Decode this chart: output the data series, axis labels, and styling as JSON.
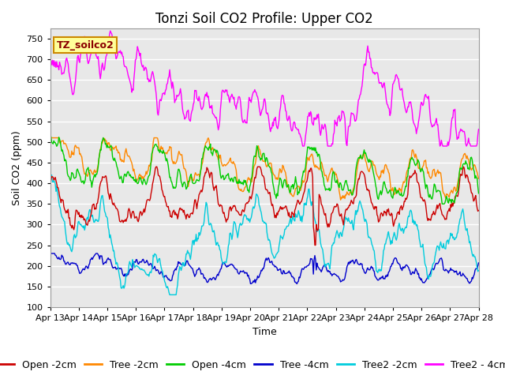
{
  "title": "Tonzi Soil CO2 Profile: Upper CO2",
  "xlabel": "Time",
  "ylabel": "Soil CO2 (ppm)",
  "ylim": [
    100,
    775
  ],
  "yticks": [
    100,
    150,
    200,
    250,
    300,
    350,
    400,
    450,
    500,
    550,
    600,
    650,
    700,
    750
  ],
  "annotation_text": "TZ_soilco2",
  "annotation_color": "#8B0000",
  "annotation_bg": "#FFFF99",
  "annotation_border": "#CC8800",
  "colors": {
    "Open -2cm": "#CC0000",
    "Tree -2cm": "#FF8800",
    "Open -4cm": "#00CC00",
    "Tree -4cm": "#0000CC",
    "Tree2 -2cm": "#00CCDD",
    "Tree2 - 4cm": "#FF00FF"
  },
  "xticklabels": [
    "Apr 13",
    "Apr 14",
    "Apr 15",
    "Apr 16",
    "Apr 17",
    "Apr 18",
    "Apr 19",
    "Apr 20",
    "Apr 21",
    "Apr 22",
    "Apr 23",
    "Apr 24",
    "Apr 25",
    "Apr 26",
    "Apr 27",
    "Apr 28"
  ],
  "fig_bg": "#FFFFFF",
  "plot_bg": "#E8E8E8",
  "grid_color": "#FFFFFF",
  "title_fontsize": 12,
  "axis_fontsize": 9,
  "tick_fontsize": 8,
  "legend_fontsize": 9,
  "lw": 1.0
}
